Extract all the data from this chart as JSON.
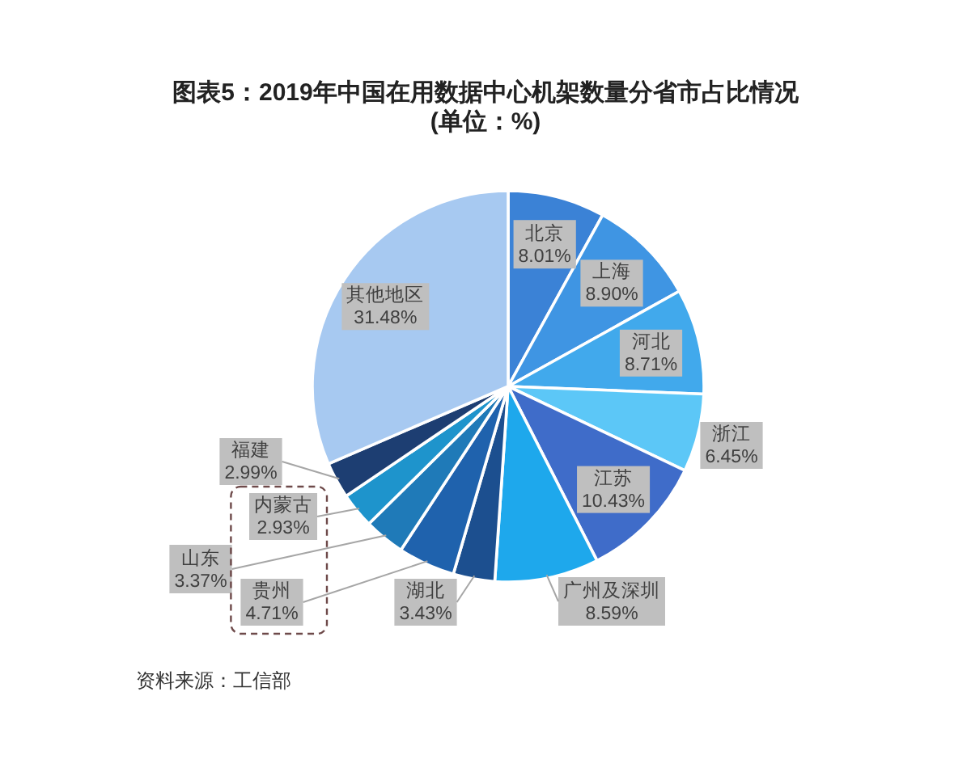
{
  "chart_data": {
    "type": "pie",
    "title": "图表5：2019年中国在用数据中心机架数量分省市占比情况",
    "subtitle": "(单位：%)",
    "categories": [
      "北京",
      "上海",
      "河北",
      "浙江",
      "江苏",
      "广州及深圳",
      "湖北",
      "贵州",
      "山东",
      "内蒙古",
      "福建",
      "其他地区"
    ],
    "values": [
      8.01,
      8.9,
      8.71,
      6.45,
      10.43,
      8.59,
      3.43,
      4.71,
      3.37,
      2.93,
      2.99,
      31.48
    ],
    "colors": [
      "#3b82d6",
      "#3f95e3",
      "#41a9ec",
      "#5cc7f7",
      "#3f6cc9",
      "#1ea8ec",
      "#1c4f8f",
      "#1f62ad",
      "#1f7ab8",
      "#1e94cc",
      "#1d3e72",
      "#a7c9f1"
    ],
    "value_labels": [
      "8.01%",
      "8.90%",
      "8.71%",
      "6.45%",
      "10.43%",
      "8.59%",
      "3.43%",
      "4.71%",
      "3.37%",
      "2.93%",
      "2.99%",
      "31.48%"
    ],
    "annotations": [
      "资料来源：工信部"
    ]
  }
}
